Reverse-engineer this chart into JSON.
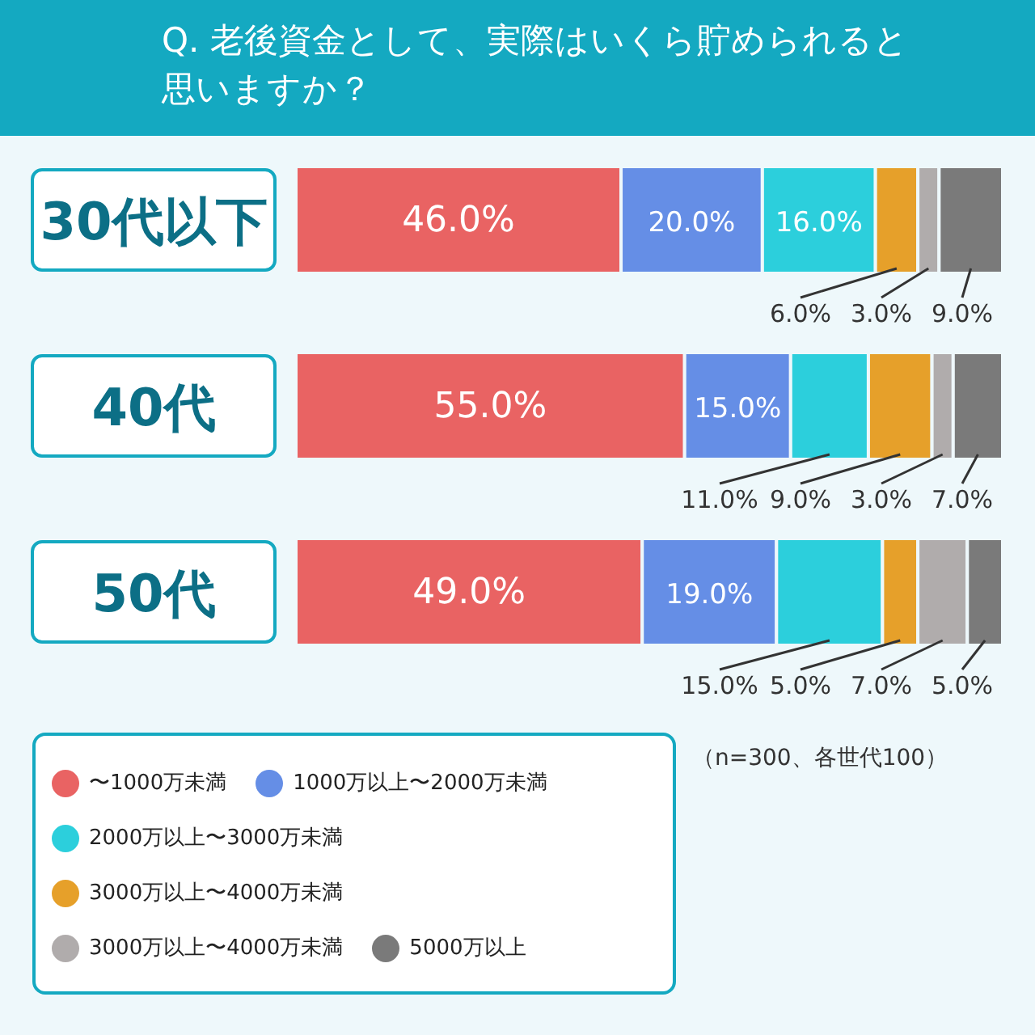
{
  "chart_data": {
    "type": "bar",
    "orientation": "horizontal",
    "stacked": true,
    "title": "Q. 老後資金として、実際はいくら貯められると思いますか？",
    "categories": [
      "30代以下",
      "40代",
      "50代"
    ],
    "legend": "bottom left",
    "annotations": [
      "（n=300、各世代100）"
    ],
    "series": [
      {
        "name": "〜1000万未満",
        "color": "#e96363",
        "values": [
          46,
          55,
          49
        ],
        "value_labels": [
          "46.0%",
          "55.0%",
          "49.0%"
        ]
      },
      {
        "name": "1000万以上〜2000万未満",
        "color": "#658ee6",
        "values": [
          20,
          15,
          19
        ],
        "value_labels": [
          "20.0%",
          "15.0%",
          "19.0%"
        ]
      },
      {
        "name": "2000万以上〜3000万未満",
        "color": "#2ccfdc",
        "values": [
          16,
          11,
          15
        ],
        "value_labels": [
          "16.0%",
          "11.0%",
          "15.0%"
        ]
      },
      {
        "name": "3000万以上〜4000万未満",
        "color": "#e6a02a",
        "values": [
          6,
          9,
          5
        ],
        "value_labels": [
          "6.0%",
          "9.0%",
          "5.0%"
        ]
      },
      {
        "name": "3000万以上〜4000万未満",
        "color": "#b0acac",
        "values": [
          3,
          3,
          7
        ],
        "value_labels": [
          "3.0%",
          "3.0%",
          "7.0%"
        ]
      },
      {
        "name": "5000万以上",
        "color": "#7a7a7a",
        "values": [
          9,
          7,
          5
        ],
        "value_labels": [
          "9.0%",
          "7.0%",
          "5.0%"
        ]
      }
    ]
  }
}
